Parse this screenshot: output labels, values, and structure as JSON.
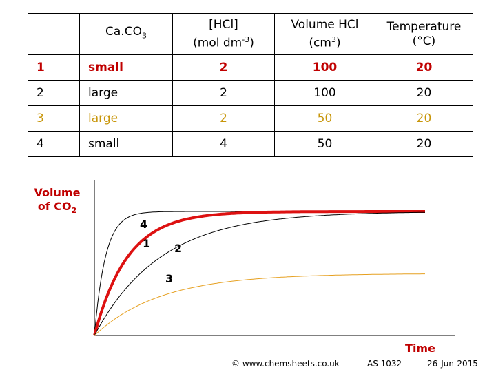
{
  "table": {
    "headers": [
      {
        "main": "",
        "sub": "",
        "sup": "",
        "tail": "",
        "line2": ""
      },
      {
        "main": "Ca.CO",
        "sub": "3",
        "sup": "",
        "tail": "",
        "line2": ""
      },
      {
        "main": "[HCl]",
        "sub": "",
        "sup": "-3",
        "tail": ")",
        "line2": "(mol dm"
      },
      {
        "main": "Volume HCl",
        "sub": "",
        "sup": "3",
        "tail": ")",
        "line2": "(cm"
      },
      {
        "main": "Temperature",
        "sub": "",
        "sup": "",
        "tail": "",
        "line2": "(°C)"
      }
    ],
    "rows": [
      {
        "run": "1",
        "caco3": "small",
        "hcl": "2",
        "volume": "100",
        "temp": "20"
      },
      {
        "run": "2",
        "caco3": "large",
        "hcl": "2",
        "volume": "100",
        "temp": "20"
      },
      {
        "run": "3",
        "caco3": "large",
        "hcl": "2",
        "volume": "50",
        "temp": "20"
      },
      {
        "run": "4",
        "caco3": "small",
        "hcl": "4",
        "volume": "50",
        "temp": "20"
      }
    ]
  },
  "chart_data": {
    "type": "line",
    "xlabel": "Time",
    "ylabel_main": "Volume",
    "ylabel_line2": "of CO",
    "ylabel_sub": "2",
    "xlim": [
      0,
      1
    ],
    "ylim": [
      0,
      1
    ],
    "grid": false,
    "series": [
      {
        "name": "4",
        "color": "#000000",
        "width": 1,
        "final": 0.8,
        "k": 30
      },
      {
        "name": "1",
        "color": "#dd1111",
        "width": 4,
        "final": 0.8,
        "k": 10
      },
      {
        "name": "2",
        "color": "#000000",
        "width": 1,
        "final": 0.8,
        "k": 5
      },
      {
        "name": "3",
        "color": "#e6a020",
        "width": 1,
        "final": 0.4,
        "k": 5
      }
    ]
  },
  "footer": {
    "copyright": "© www.chemsheets.co.uk",
    "code": "AS  1032",
    "date": "26-Jun-2015"
  }
}
